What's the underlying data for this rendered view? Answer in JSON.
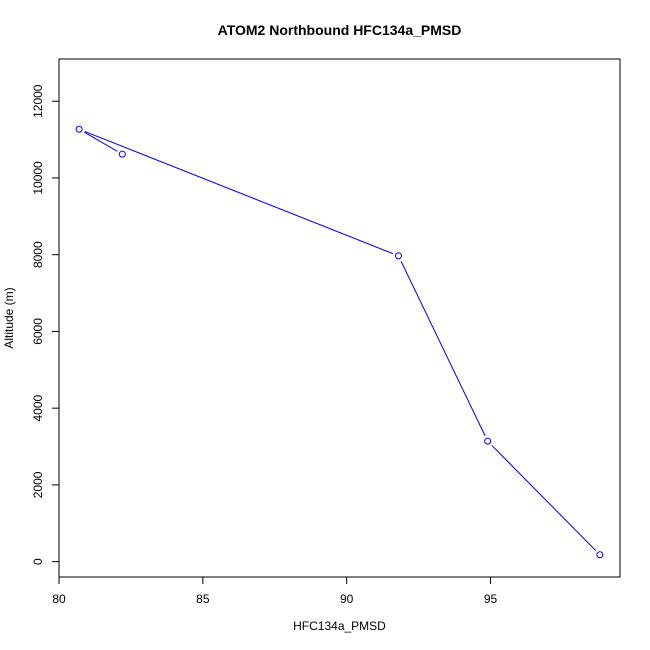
{
  "chart_data": {
    "type": "line",
    "title": "ATOM2 Northbound HFC134a_PMSD",
    "xlabel": "HFC134a_PMSD",
    "ylabel": "Altitude (m)",
    "xlim": [
      80.0,
      99.5
    ],
    "ylim": [
      -400,
      13100
    ],
    "xticks": [
      80,
      85,
      90,
      95
    ],
    "yticks": [
      0,
      2000,
      4000,
      6000,
      8000,
      10000,
      12000
    ],
    "grid": false,
    "series": [
      {
        "color": "#0000ff",
        "marker": "open-circle",
        "x": [
          98.8,
          94.9,
          91.8,
          80.7,
          82.2
        ],
        "y": [
          180,
          3140,
          7970,
          11270,
          10620
        ]
      }
    ]
  }
}
